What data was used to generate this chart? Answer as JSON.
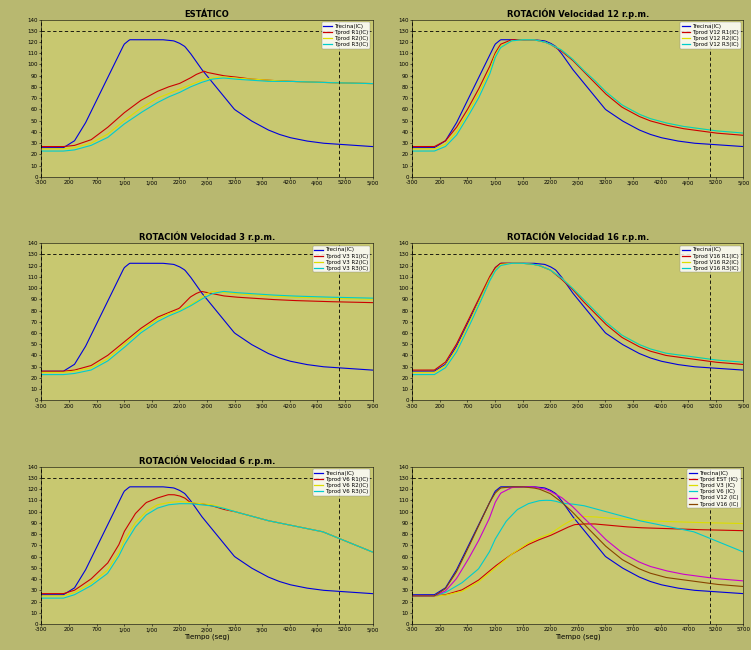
{
  "bg_color": "#b8b870",
  "plot_bg_color": "#c8c870",
  "outer_bg": "#a0a060",
  "titles": [
    "ESTÁTICO",
    "ROTACIÓN Velocidad 12 r.p.m.",
    "ROTACIÓN Velocidad 3 r.p.m.",
    "ROTACIÓN Velocidad 16 r.p.m.",
    "ROTACIÓN Velocidad 6 r.p.m.",
    ""
  ],
  "xlim_small": [
    -300,
    5700
  ],
  "xlim_last": [
    -300,
    5700
  ],
  "ylim": [
    0,
    130
  ],
  "xticks_small": [
    -300,
    200,
    700,
    1200,
    1700,
    2200,
    2700,
    3200,
    3700,
    4200,
    4700,
    5200,
    5700
  ],
  "xtick_labels_small": [
    "-300",
    "200",
    "700",
    "1/00",
    "1/00",
    "2200",
    "2/00",
    "3200",
    "3/00",
    "4200",
    "4/00",
    "5200",
    "5/00"
  ],
  "yticks": [
    0,
    10,
    20,
    30,
    40,
    50,
    60,
    70,
    80,
    90,
    100,
    110,
    120,
    130
  ],
  "ytick_labels": [
    "0",
    "10",
    "20",
    "30",
    "40",
    "50",
    "60",
    "70",
    "80",
    "90",
    "100",
    "110",
    "120",
    "130"
  ],
  "xlabel": "Tiempo (seg)",
  "line_colors": {
    "trecina": "#0000dd",
    "r1": "#cc0000",
    "r2": "#dddd00",
    "r3": "#00cccc"
  },
  "sum_colors": [
    "#0000dd",
    "#cc0000",
    "#dddd00",
    "#00cccc",
    "#cc00cc",
    "#884400"
  ],
  "sum_labels": [
    "Trecina(lC)",
    "Tprod EST (lC)",
    "Tprod V3 (lC)",
    "Tprod V6 (lC)",
    "Tprod V12 (lC)",
    "Tprod V16 (lC)"
  ]
}
